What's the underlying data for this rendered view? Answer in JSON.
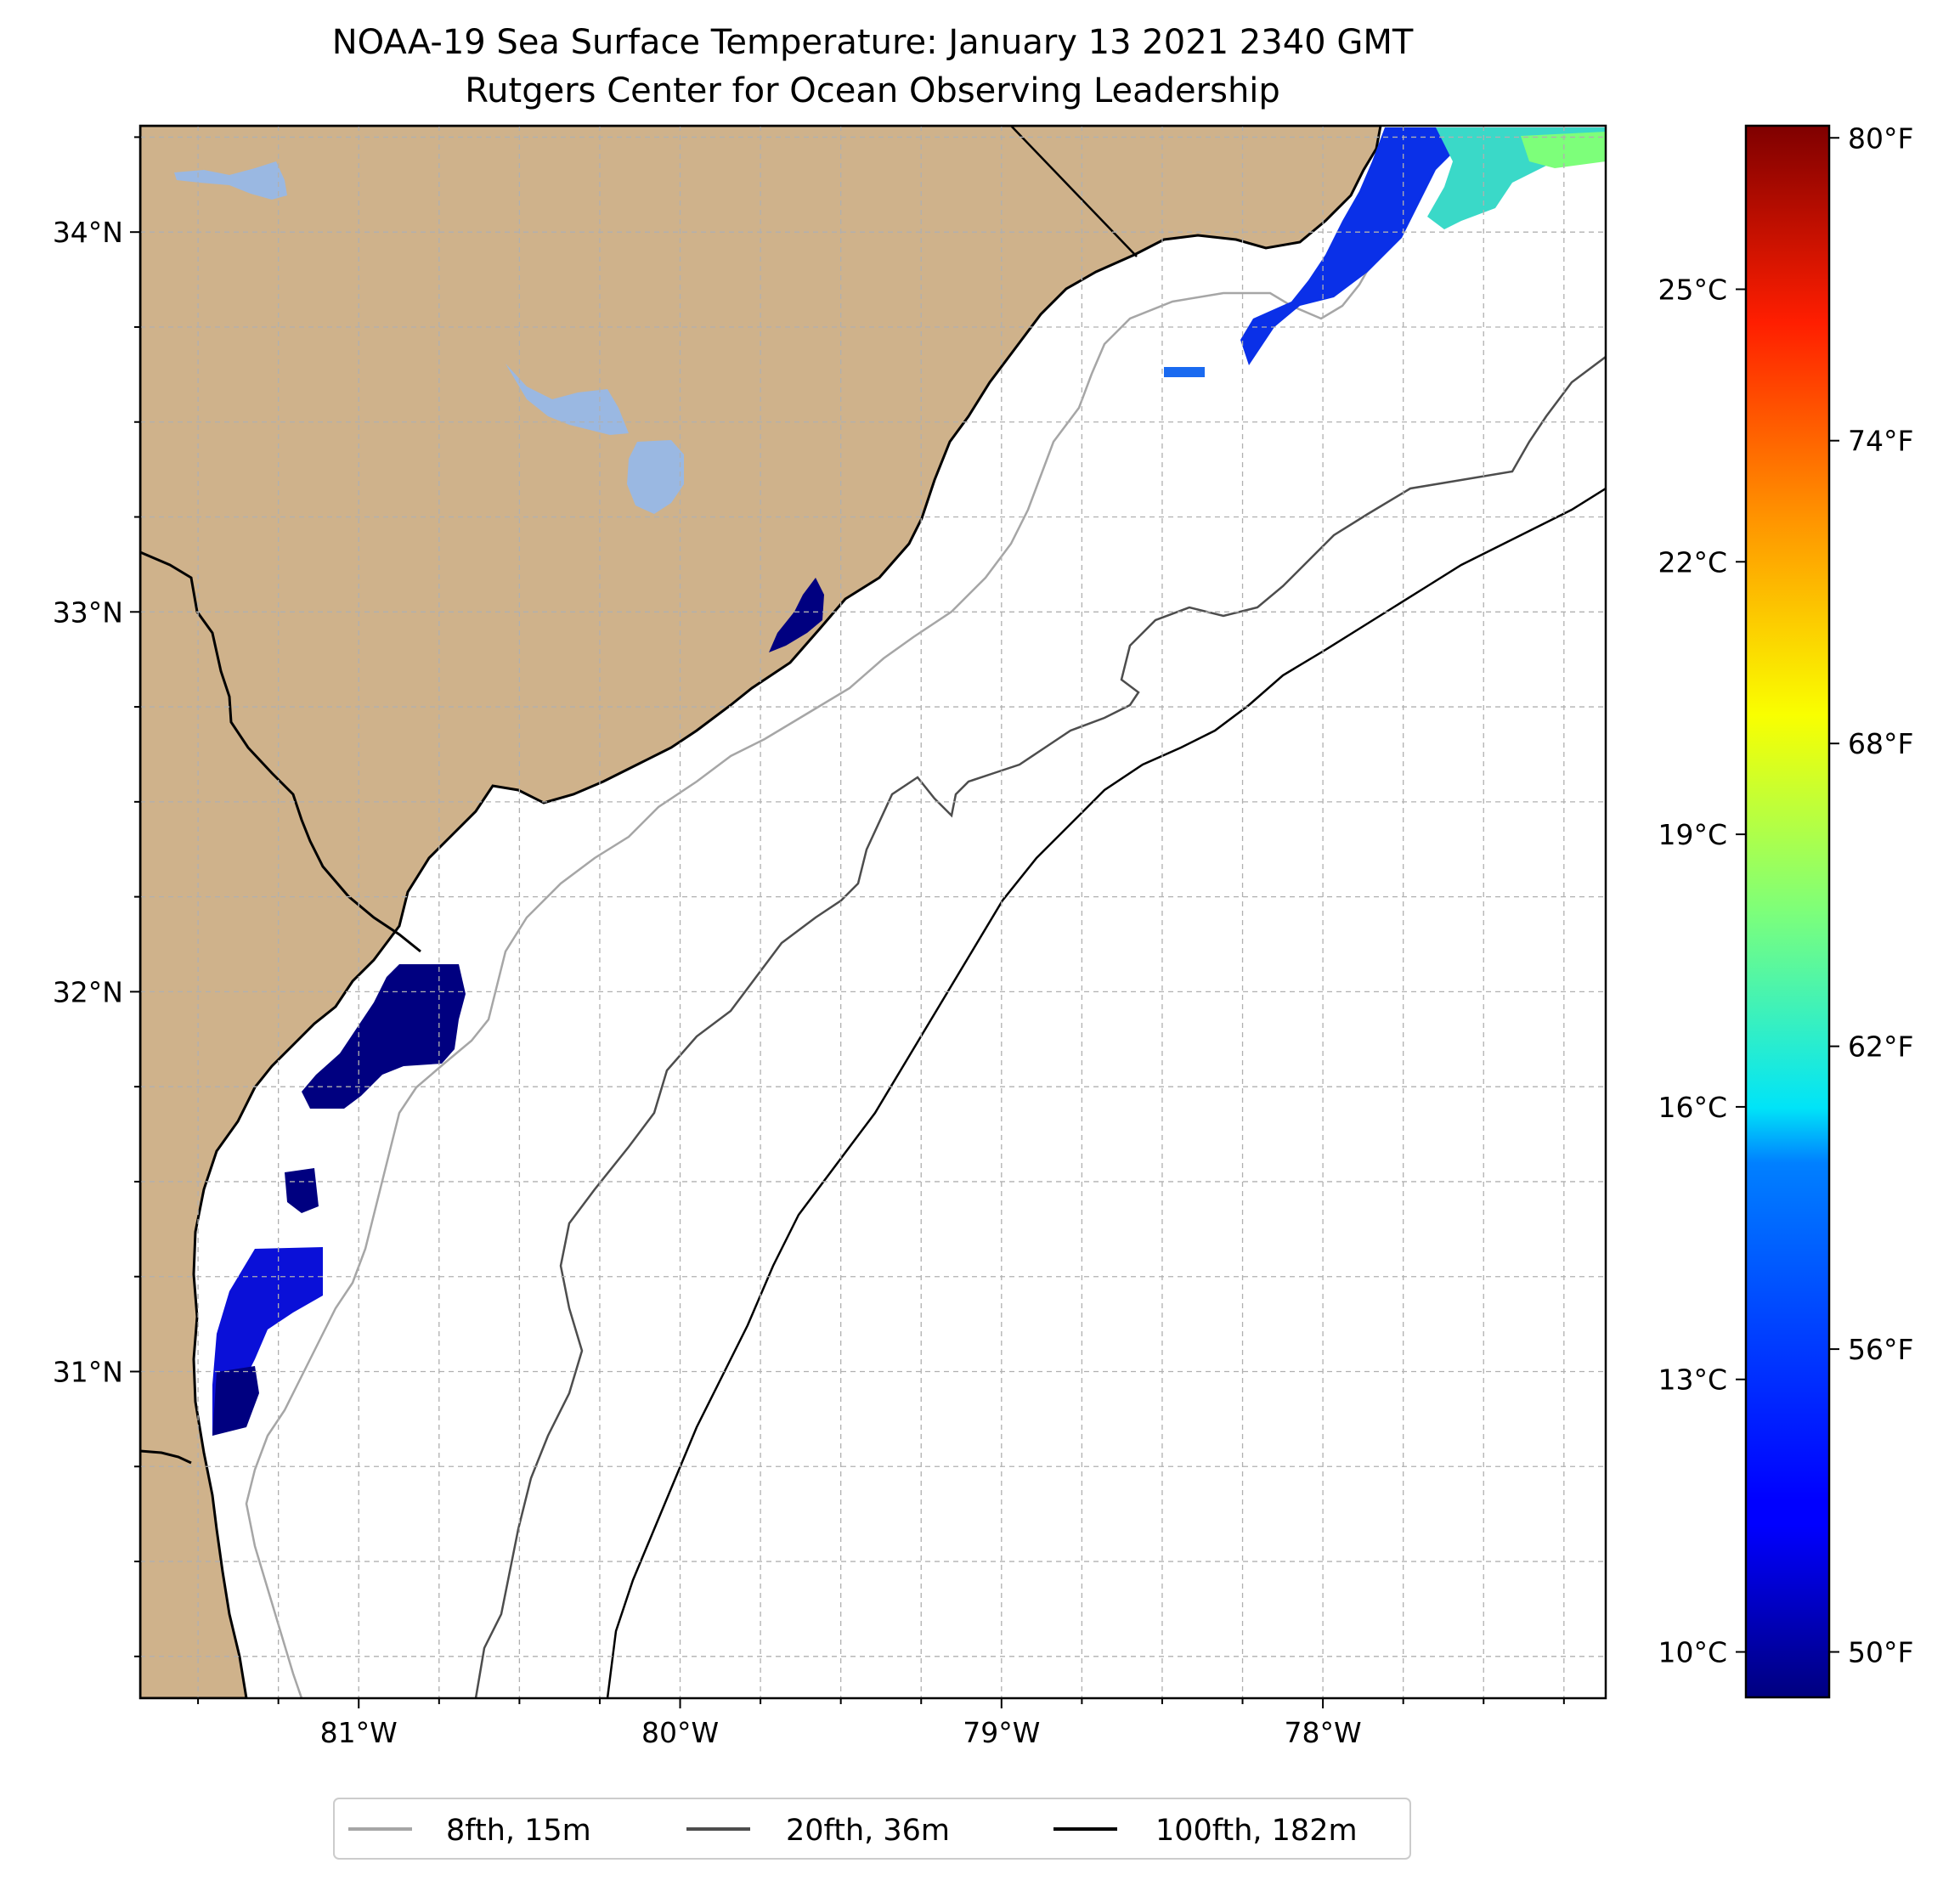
{
  "title": "NOAA-19 Sea Surface Temperature: January 13 2021 2340 GMT",
  "subtitle": "Rutgers Center for Ocean Observing Leadership",
  "map": {
    "lon_range": [
      -81.68,
      -77.12
    ],
    "lat_range": [
      30.14,
      34.28
    ],
    "lon_ticks": [
      {
        "value": -81,
        "label": "81°W"
      },
      {
        "value": -80,
        "label": "80°W"
      },
      {
        "value": -79,
        "label": "79°W"
      },
      {
        "value": -78,
        "label": "78°W"
      }
    ],
    "lat_ticks": [
      {
        "value": 31,
        "label": "31°N"
      },
      {
        "value": 32,
        "label": "32°N"
      },
      {
        "value": 33,
        "label": "33°N"
      },
      {
        "value": 34,
        "label": "34°N"
      }
    ],
    "gridlines": "dashed",
    "land_color": "#cfb28b",
    "lake_color": "#9ab8e2",
    "ocean_color": "#ffffff"
  },
  "colorbar": {
    "colormap": "jet",
    "range_c": [
      9.5,
      26.8
    ],
    "celsius_ticks": [
      {
        "value": 10,
        "label": "10°C"
      },
      {
        "value": 13,
        "label": "13°C"
      },
      {
        "value": 16,
        "label": "16°C"
      },
      {
        "value": 19,
        "label": "19°C"
      },
      {
        "value": 22,
        "label": "22°C"
      },
      {
        "value": 25,
        "label": "25°C"
      }
    ],
    "fahrenheit_ticks": [
      {
        "value": 50,
        "label": "50°F"
      },
      {
        "value": 56,
        "label": "56°F"
      },
      {
        "value": 62,
        "label": "62°F"
      },
      {
        "value": 68,
        "label": "68°F"
      },
      {
        "value": 74,
        "label": "74°F"
      },
      {
        "value": 80,
        "label": "80°F"
      }
    ]
  },
  "legend": {
    "placement": "bottom-center",
    "items": [
      {
        "label": "8fth, 15m",
        "color": "#a6a6a6"
      },
      {
        "label": "20fth, 36m",
        "color": "#4d4d4d"
      },
      {
        "label": "100fth, 182m",
        "color": "#000000"
      }
    ]
  }
}
